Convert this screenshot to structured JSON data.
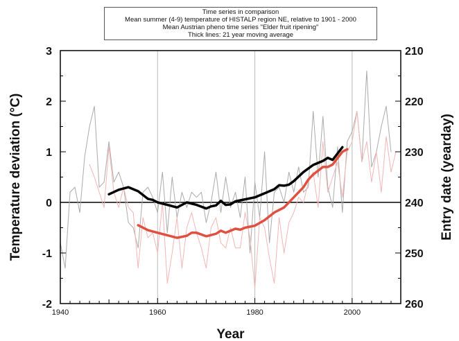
{
  "chart_data": {
    "type": "line",
    "legend_lines": [
      "Time series in comparison",
      "Mean summer (4-9)  temperature of HISTALP region NE, relative to 1901 - 2000",
      "Mean Austrian pheno time series \"Elder fruit ripening\"",
      "Thick lines: 21 year moving average"
    ],
    "legend_position": "top-center",
    "xlabel": "Year",
    "ylabel": "Temperature deviation (°C)",
    "y2label": "Entry date (yearday)",
    "xlim": [
      1940,
      2010
    ],
    "ylim": [
      -2,
      3
    ],
    "y2lim": [
      260,
      210
    ],
    "xticks": [
      "1940",
      "1960",
      "1980",
      "2000"
    ],
    "xtick_values": [
      1940,
      1960,
      1980,
      2000
    ],
    "yticks": [
      "-2",
      "-1",
      "0",
      "1",
      "2",
      "3"
    ],
    "ytick_values": [
      -2,
      -1,
      0,
      1,
      2,
      3
    ],
    "y2ticks": [
      "260",
      "250",
      "240",
      "230",
      "220",
      "210"
    ],
    "y2tick_values": [
      260,
      250,
      240,
      230,
      220,
      210
    ],
    "grid_x": [
      1960,
      1980,
      2000
    ],
    "series": [
      {
        "axis": "left",
        "color": "#aaaaaa",
        "x": [
          1940,
          1941,
          1942,
          1943,
          1944,
          1945,
          1946,
          1947,
          1948,
          1949,
          1950,
          1951,
          1952,
          1953,
          1954,
          1955,
          1956,
          1957,
          1958,
          1959,
          1960,
          1961,
          1962,
          1963,
          1964,
          1965,
          1966,
          1967,
          1968,
          1969,
          1970,
          1971,
          1972,
          1973,
          1974,
          1975,
          1976,
          1977,
          1978,
          1979,
          1980,
          1981,
          1982,
          1983,
          1984,
          1985,
          1986,
          1987,
          1988,
          1989,
          1990,
          1991,
          1992,
          1993,
          1994,
          1995,
          1996,
          1997,
          1998,
          1999,
          2000,
          2001,
          2002,
          2003,
          2004,
          2005,
          2006,
          2007,
          2008
        ],
        "y": [
          -0.8,
          -1.3,
          0.2,
          0.3,
          -0.2,
          0.9,
          1.5,
          1.9,
          0.3,
          0.4,
          1.2,
          0.4,
          0.6,
          0.3,
          -0.4,
          -0.5,
          -0.9,
          0.2,
          0.3,
          0.1,
          -0.2,
          0.6,
          -0.6,
          0.5,
          -0.3,
          0.2,
          -0.1,
          0.2,
          0.1,
          0.2,
          -0.4,
          0.0,
          0.6,
          -0.2,
          0.5,
          -0.1,
          0.2,
          -0.3,
          0.5,
          -1.0,
          0.4,
          -0.3,
          1.0,
          -0.8,
          0.2,
          0.3,
          0.0,
          0.6,
          0.2,
          0.7,
          0.2,
          0.3,
          1.8,
          0.5,
          1.7,
          0.3,
          -0.1,
          1.1,
          -0.2,
          1.2,
          1.4,
          1.8,
          0.8,
          2.6,
          0.7,
          1.0,
          1.5,
          1.9,
          1.0
        ]
      },
      {
        "axis": "right",
        "color": "#f4b5b5",
        "x": [
          1946,
          1947,
          1948,
          1949,
          1950,
          1951,
          1952,
          1953,
          1954,
          1955,
          1956,
          1957,
          1958,
          1959,
          1960,
          1961,
          1962,
          1963,
          1964,
          1965,
          1966,
          1967,
          1968,
          1969,
          1970,
          1971,
          1972,
          1973,
          1974,
          1975,
          1976,
          1977,
          1978,
          1979,
          1980,
          1981,
          1982,
          1983,
          1984,
          1985,
          1986,
          1987,
          1988,
          1989,
          1990,
          1991,
          1992,
          1993,
          1994,
          1995,
          1996,
          1997,
          1998,
          1999,
          2000,
          2001,
          2002,
          2003,
          2004,
          2005,
          2006,
          2007,
          2008,
          2009
        ],
        "y": [
          232.5,
          235,
          238,
          241,
          229,
          238,
          241,
          237,
          241,
          242,
          253,
          243,
          247,
          246,
          250,
          240,
          256,
          250,
          243,
          253,
          245,
          242,
          246,
          249,
          253,
          245,
          243,
          248,
          249,
          245,
          249,
          249,
          242,
          247,
          257,
          243,
          245,
          251,
          256,
          243,
          250,
          244,
          242,
          239,
          240,
          236,
          234,
          241,
          228,
          238,
          235,
          232,
          239,
          230,
          228,
          222,
          232,
          228,
          236,
          230,
          238,
          227,
          234,
          230
        ]
      },
      {
        "axis": "left",
        "color": "#000000",
        "thick": true,
        "x": [
          1950,
          1952,
          1954,
          1956,
          1958,
          1959,
          1960,
          1962,
          1964,
          1966,
          1968,
          1970,
          1971,
          1972,
          1973,
          1974,
          1975,
          1976,
          1978,
          1980,
          1982,
          1984,
          1985,
          1986,
          1987,
          1988,
          1990,
          1992,
          1994,
          1995,
          1996,
          1998
        ],
        "y": [
          0.16,
          0.25,
          0.3,
          0.22,
          0.07,
          0.05,
          0.0,
          -0.05,
          -0.1,
          0.0,
          -0.05,
          -0.12,
          -0.08,
          -0.06,
          0.03,
          -0.05,
          -0.04,
          0.02,
          0.06,
          0.1,
          0.18,
          0.26,
          0.34,
          0.33,
          0.35,
          0.42,
          0.6,
          0.74,
          0.82,
          0.88,
          0.84,
          1.09
        ]
      },
      {
        "axis": "right",
        "color": "#e05040",
        "thick": true,
        "x": [
          1956,
          1958,
          1960,
          1962,
          1964,
          1966,
          1967,
          1968,
          1970,
          1972,
          1973,
          1974,
          1976,
          1977,
          1978,
          1980,
          1982,
          1984,
          1986,
          1988,
          1990,
          1991,
          1992,
          1994,
          1995,
          1996,
          1998,
          1999
        ],
        "y": [
          244.5,
          245.5,
          246,
          246.5,
          247,
          246.6,
          246,
          246,
          246.7,
          246.2,
          245.6,
          246,
          245.2,
          245.4,
          245,
          244.6,
          243.5,
          242,
          241,
          239,
          237,
          235.5,
          234.5,
          233,
          233,
          232.5,
          230,
          229.5
        ]
      }
    ]
  }
}
